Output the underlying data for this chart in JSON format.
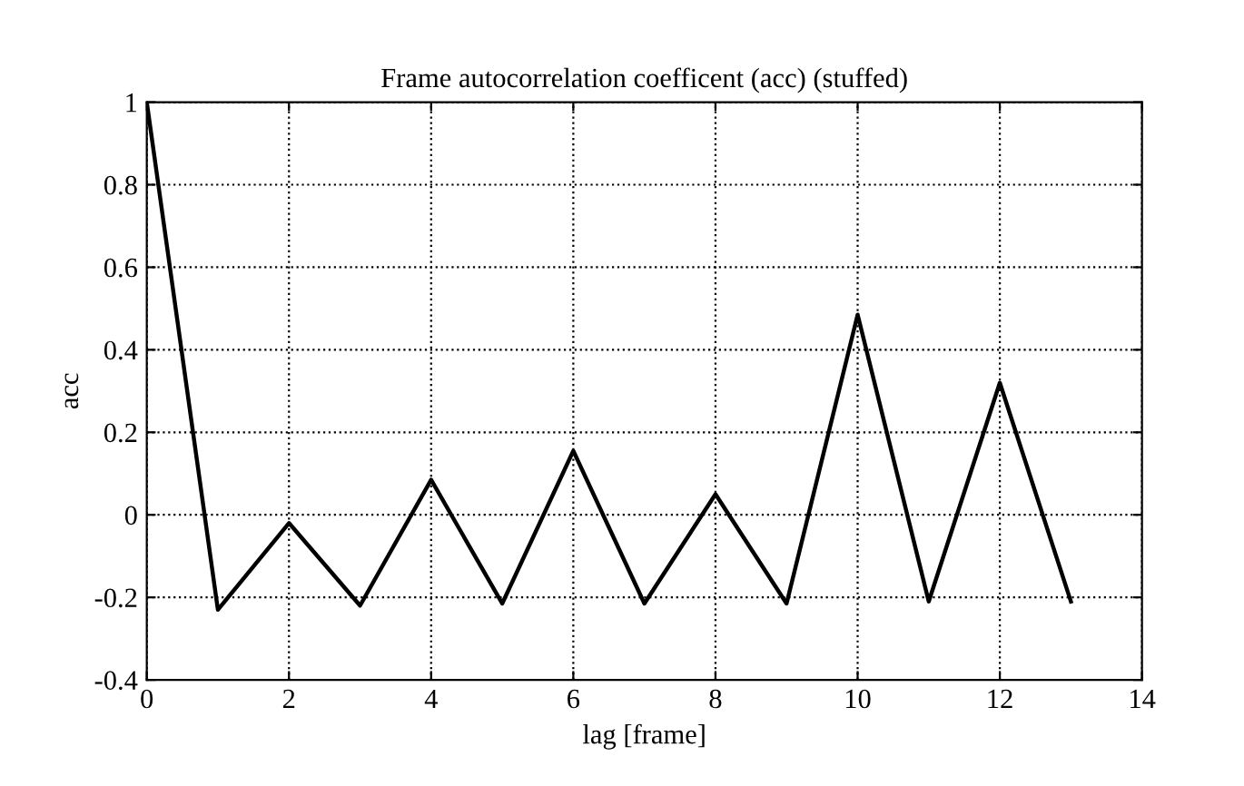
{
  "chart_data": {
    "type": "line",
    "title": "Frame autocorrelation coefficent (acc) (stuffed)",
    "xlabel": "lag [frame]",
    "ylabel": "acc",
    "x": [
      0,
      1,
      2,
      3,
      4,
      5,
      6,
      7,
      8,
      9,
      10,
      11,
      12,
      13
    ],
    "series": [
      {
        "color": "#000000",
        "values": [
          1,
          -0.23,
          -0.02,
          -0.22,
          0.085,
          -0.215,
          0.155,
          -0.215,
          0.05,
          -0.215,
          0.485,
          -0.21,
          0.32,
          -0.21
        ]
      }
    ],
    "xlim": [
      0,
      14
    ],
    "xticks": [
      0,
      2,
      4,
      6,
      8,
      10,
      12,
      14
    ],
    "ylim": [
      -0.4,
      1
    ],
    "yticks": [
      -0.4,
      -0.2,
      0,
      0.2,
      0.4,
      0.6,
      0.8,
      1
    ],
    "grid": true,
    "marker": "none",
    "line_style": "solid",
    "legend": false
  }
}
